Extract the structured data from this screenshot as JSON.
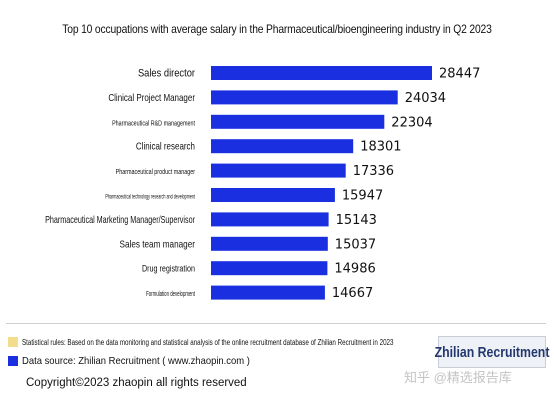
{
  "chart_data": {
    "type": "bar",
    "orientation": "horizontal",
    "title": "Top 10 occupations with average salary in the Pharmaceutical/bioengineering industry in Q2 2023",
    "categories": [
      "Sales director",
      "Clinical Project Manager",
      "Pharmaceutical R&D management",
      "Clinical research",
      "Pharmaceutical product manager",
      "Pharmaceutical technology research and development",
      "Pharmaceutical Marketing Manager/Supervisor",
      "Sales team manager",
      "Drug registration",
      "Formulation development"
    ],
    "values": [
      28447,
      24034,
      22304,
      18301,
      17336,
      15947,
      15143,
      15037,
      14986,
      14667
    ],
    "xlabel": "",
    "ylabel": "",
    "xlim": [
      0,
      31000
    ],
    "grid": false,
    "legend": "none",
    "data_labels": true,
    "bar_color": "#1a2fe0"
  },
  "footnotes": {
    "statistical_rules": "Statistical rules: Based on the data monitoring and statistical analysis of the online recruitment database of Zhilian Recruitment in 2023",
    "data_source": "Data source: Zhilian Recruitment ( www.zhaopin.com )",
    "statistical_rules_marker_color": "#f3dc8c",
    "data_source_marker_color": "#1a2fe0"
  },
  "copyright": "Copyright©2023 zhaopin all rights reserved",
  "logo_text": "Zhilian Recruitment",
  "watermark": "知乎 @精选报告库"
}
